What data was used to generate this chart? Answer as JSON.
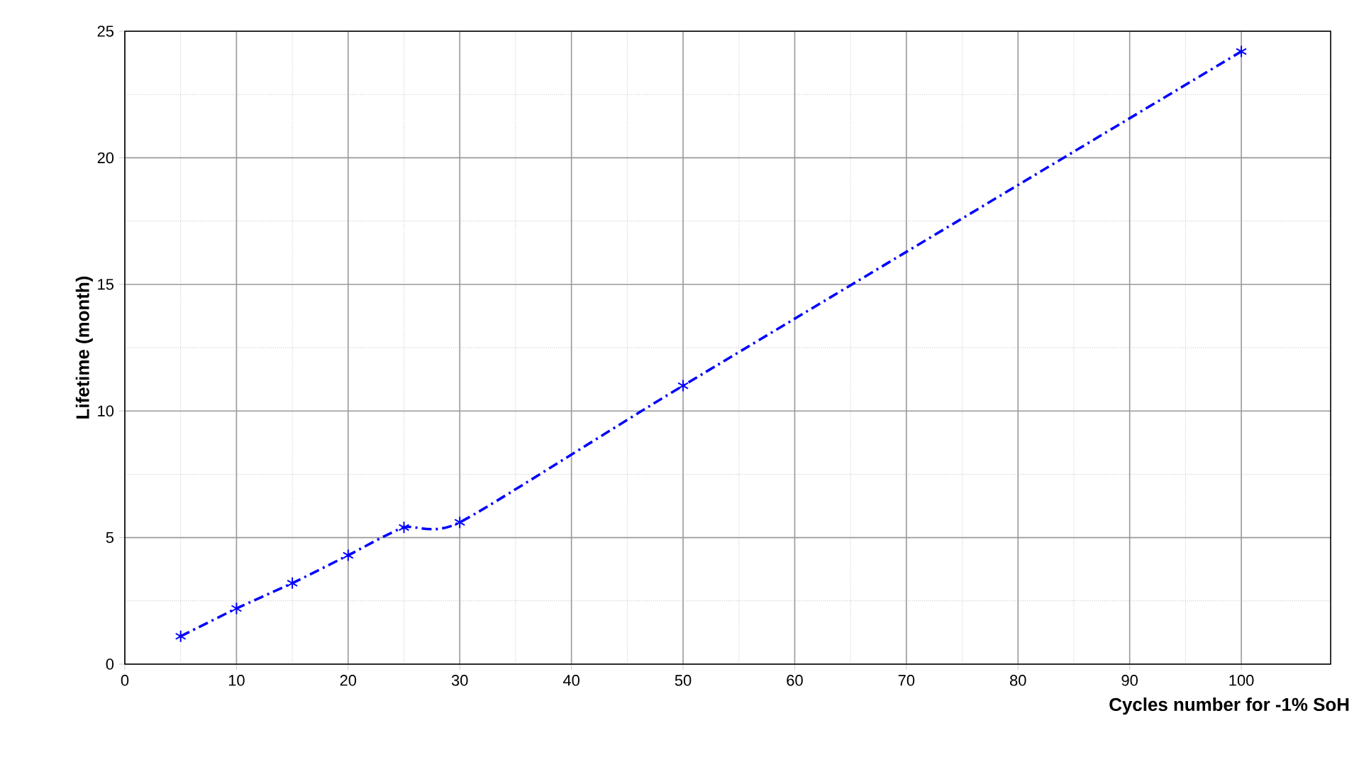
{
  "chart_data": {
    "type": "line",
    "xlabel": "Cycles number for -1% SoH",
    "ylabel": "Lifetime (month)",
    "x": [
      5,
      10,
      15,
      20,
      25,
      30,
      50,
      100
    ],
    "series": [
      {
        "color": "#0000ff",
        "values": [
          1.1,
          2.2,
          3.2,
          4.3,
          5.4,
          5.6,
          11.0,
          24.2
        ]
      }
    ],
    "xlim": [
      0,
      108
    ],
    "ylim": [
      0,
      25
    ],
    "xticks": [
      0,
      10,
      20,
      30,
      40,
      50,
      60,
      70,
      80,
      90,
      100
    ],
    "yticks": [
      0,
      5,
      10,
      15,
      20,
      25
    ],
    "grid": true,
    "marker": "cross",
    "line_style": "dashed"
  }
}
